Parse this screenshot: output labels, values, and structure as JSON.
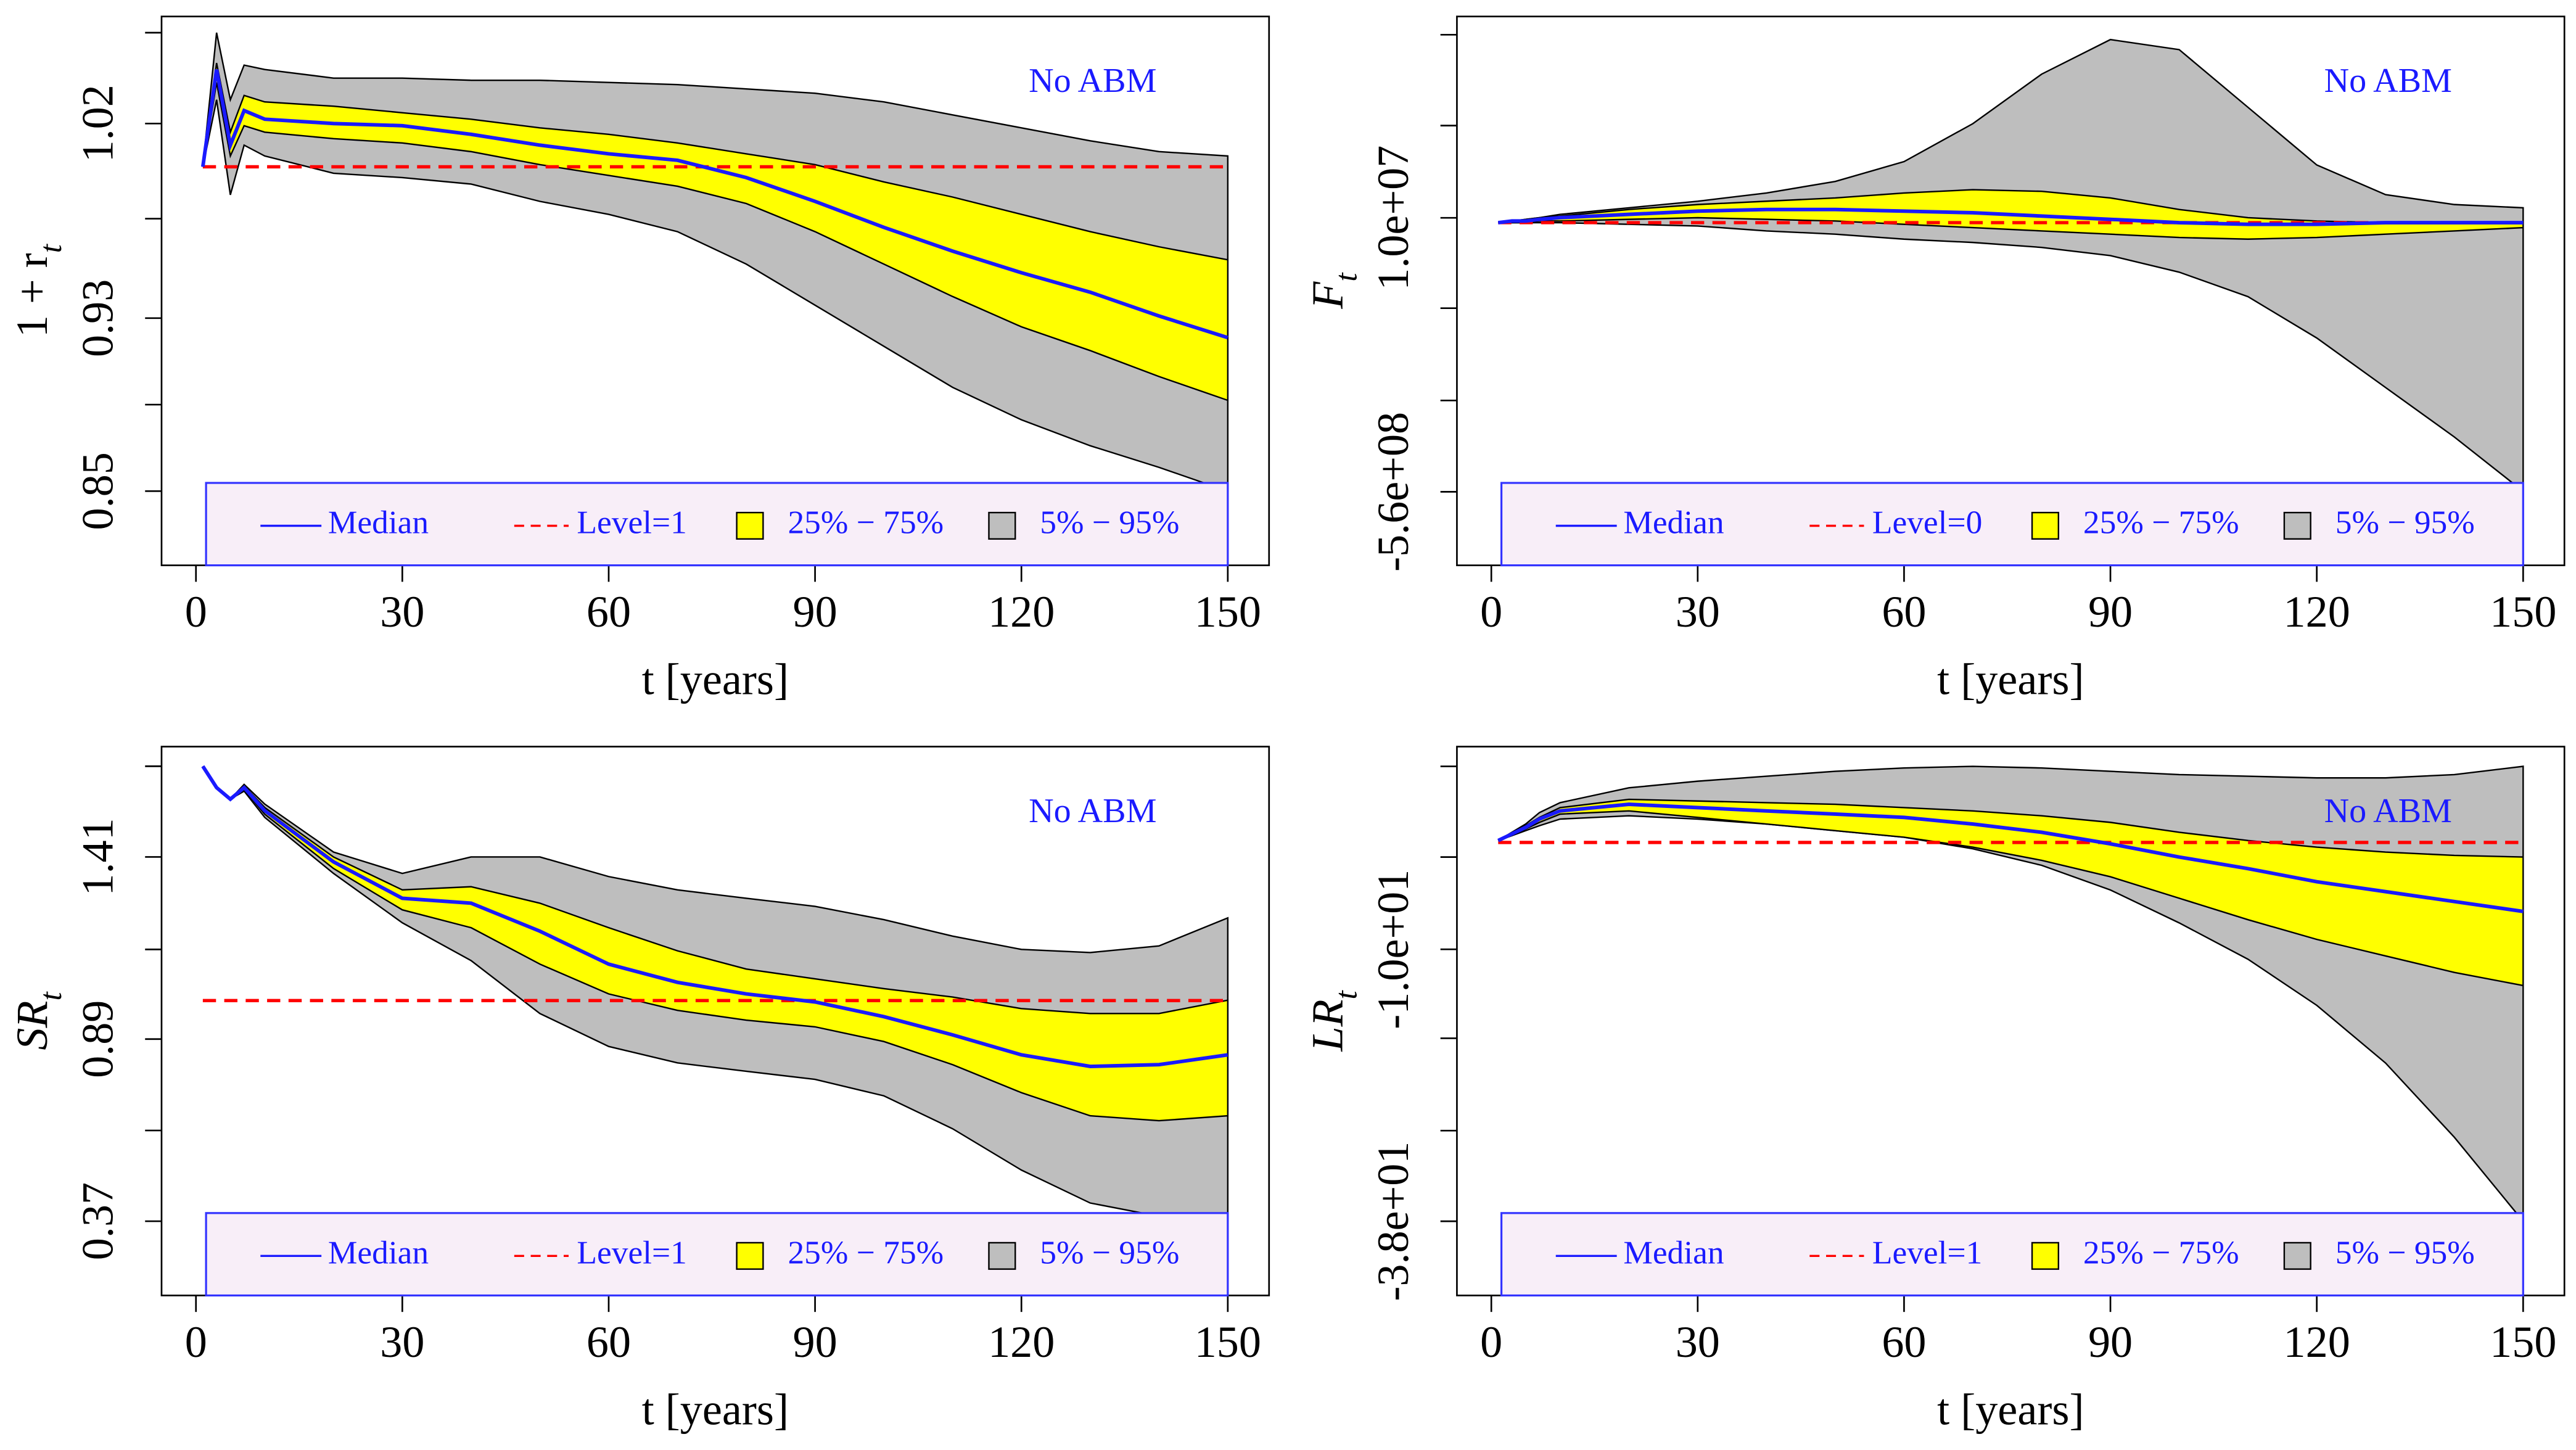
{
  "chart_data": [
    {
      "type": "line",
      "ylabel": {
        "text": "1 + r",
        "sub": "t"
      },
      "xlabel": "t [years]",
      "annotation": "No ABM",
      "x": [
        1,
        3,
        5,
        7,
        10,
        20,
        30,
        40,
        50,
        60,
        70,
        80,
        90,
        100,
        110,
        120,
        130,
        140,
        150
      ],
      "xlim": [
        -5,
        156
      ],
      "xticks": [
        0,
        30,
        60,
        90,
        120,
        150
      ],
      "ylim": [
        0.8157,
        1.0695
      ],
      "yticks": [
        1.02,
        0.93,
        0.85
      ],
      "yminorticks": [
        1.062,
        0.976,
        0.89
      ],
      "series": [
        {
          "name": "Median",
          "color": "#1a1aff",
          "values": [
            1.0,
            1.045,
            1.01,
            1.026,
            1.022,
            1.02,
            1.019,
            1.015,
            1.01,
            1.006,
            1.003,
            0.995,
            0.984,
            0.972,
            0.961,
            0.951,
            0.942,
            0.931,
            0.921
          ]
        },
        {
          "name": "Level=1",
          "color": "#ff0000",
          "dashed": true,
          "values": [
            1,
            1,
            1,
            1,
            1,
            1,
            1,
            1,
            1,
            1,
            1,
            1,
            1,
            1,
            1,
            1,
            1,
            1,
            1
          ]
        },
        {
          "name": "25% − 75%",
          "color": "#ffff00",
          "upper": [
            1.0,
            1.048,
            1.016,
            1.033,
            1.03,
            1.028,
            1.025,
            1.022,
            1.018,
            1.015,
            1.011,
            1.006,
            1.001,
            0.993,
            0.986,
            0.978,
            0.97,
            0.963,
            0.957
          ],
          "lower": [
            1.0,
            1.039,
            1.005,
            1.019,
            1.016,
            1.013,
            1.011,
            1.007,
            1.001,
            0.996,
            0.991,
            0.983,
            0.97,
            0.955,
            0.94,
            0.926,
            0.915,
            0.903,
            0.892
          ]
        },
        {
          "name": "5% − 95%",
          "color": "#bebebe",
          "upper": [
            1.0,
            1.062,
            1.031,
            1.047,
            1.045,
            1.041,
            1.041,
            1.04,
            1.04,
            1.039,
            1.038,
            1.036,
            1.034,
            1.03,
            1.024,
            1.018,
            1.012,
            1.007,
            1.005
          ],
          "lower": [
            1.0,
            1.031,
            0.987,
            1.01,
            1.005,
            0.997,
            0.995,
            0.992,
            0.984,
            0.978,
            0.97,
            0.955,
            0.936,
            0.917,
            0.898,
            0.883,
            0.871,
            0.861,
            0.85
          ]
        }
      ]
    },
    {
      "type": "line",
      "ylabel": {
        "text": "F",
        "sub": "t"
      },
      "xlabel": "t [years]",
      "annotation": "No ABM",
      "x": [
        1,
        3,
        5,
        7,
        10,
        20,
        30,
        40,
        50,
        60,
        70,
        80,
        90,
        100,
        110,
        120,
        130,
        140,
        150
      ],
      "xlim": [
        -5,
        156
      ],
      "xticks": [
        0,
        30,
        60,
        90,
        120,
        150
      ],
      "ylim": [
        -713000000.0,
        429000000.0
      ],
      "yticks": [
        {
          "value": 10000000.0,
          "label": "1.0e+07"
        },
        {
          "value": -560000000.0,
          "label": "-5.6e+08"
        }
      ],
      "yminorticks": [
        391000000.0,
        202000000.0,
        -178000000.0,
        -370000000.0
      ],
      "series": [
        {
          "name": "Median",
          "color": "#1a1aff",
          "values": [
            0,
            3400000.0,
            3400000.0,
            6900000.0,
            10300000.0,
            17200000.0,
            24000000.0,
            27400000.0,
            27400000.0,
            24000000.0,
            20600000.0,
            13700000.0,
            6900000.0,
            0,
            -3400000.0,
            -3400000.0,
            0,
            0,
            0
          ]
        },
        {
          "name": "Level=0",
          "color": "#ff0000",
          "dashed": true,
          "values": [
            0,
            0,
            0,
            0,
            0,
            0,
            0,
            0,
            0,
            0,
            0,
            0,
            0,
            0,
            0,
            0,
            0,
            0,
            0
          ]
        },
        {
          "name": "25% − 75%",
          "color": "#ffff00",
          "upper": [
            0,
            3400000.0,
            6900000.0,
            10300000.0,
            13700000.0,
            27400000.0,
            37700000.0,
            44600000.0,
            51500000.0,
            61700000.0,
            68600000.0,
            65200000.0,
            51500000.0,
            27400000.0,
            10300000.0,
            3400000.0,
            0,
            0,
            0
          ],
          "lower": [
            0,
            0,
            0,
            3400000.0,
            3400000.0,
            6900000.0,
            10300000.0,
            6900000.0,
            3400000.0,
            -3400000.0,
            -10300000.0,
            -17200000.0,
            -24000000.0,
            -30900000.0,
            -34300000.0,
            -30900000.0,
            -24000000.0,
            -17200000.0,
            -10300000.0
          ]
        },
        {
          "name": "5% − 95%",
          "color": "#bebebe",
          "upper": [
            0,
            3400000.0,
            6900000.0,
            10300000.0,
            17200000.0,
            30900000.0,
            44600000.0,
            61700000.0,
            85800000.0,
            127000000.0,
            206000000.0,
            309000000.0,
            381000000.0,
            360000000.0,
            240000000.0,
            120000000.0,
            58300000.0,
            37700000.0,
            30900000.0
          ],
          "lower": [
            0,
            0,
            0,
            0,
            0,
            -3400000.0,
            -6900000.0,
            -17200000.0,
            -24000000.0,
            -34300000.0,
            -41200000.0,
            -51500000.0,
            -68600000.0,
            -103000000.0,
            -154000000.0,
            -240000000.0,
            -343000000.0,
            -446000000.0,
            -559000000.0
          ]
        }
      ]
    },
    {
      "type": "line",
      "ylabel": {
        "text": "SR",
        "sub": "t"
      },
      "xlabel": "t [years]",
      "annotation": "No ABM",
      "x": [
        1,
        3,
        5,
        7,
        10,
        20,
        30,
        40,
        50,
        60,
        70,
        80,
        90,
        100,
        110,
        120,
        130,
        140,
        150
      ],
      "xlim": [
        -5,
        156
      ],
      "xticks": [
        0,
        30,
        60,
        90,
        120,
        150
      ],
      "ylim": [
        0.158,
        1.725
      ],
      "yticks": [
        1.41,
        0.89,
        0.37
      ],
      "yminorticks": [
        1.669,
        1.146,
        0.629
      ],
      "series": [
        {
          "name": "Median",
          "color": "#1a1aff",
          "values": [
            1.669,
            1.608,
            1.575,
            1.608,
            1.542,
            1.396,
            1.292,
            1.278,
            1.198,
            1.104,
            1.052,
            1.019,
            0.996,
            0.954,
            0.902,
            0.845,
            0.812,
            0.817,
            0.845
          ]
        },
        {
          "name": "Level=1",
          "color": "#ff0000",
          "dashed": true,
          "values": [
            1,
            1,
            1,
            1,
            1,
            1,
            1,
            1,
            1,
            1,
            1,
            1,
            1,
            1,
            1,
            1,
            1,
            1,
            1
          ]
        },
        {
          "name": "25% − 75%",
          "color": "#ffff00",
          "upper": [
            1.669,
            1.608,
            1.575,
            1.612,
            1.551,
            1.41,
            1.316,
            1.325,
            1.278,
            1.208,
            1.142,
            1.09,
            1.062,
            1.034,
            1.01,
            0.977,
            0.963,
            0.963,
            1.001
          ],
          "lower": [
            1.669,
            1.608,
            1.575,
            1.603,
            1.532,
            1.377,
            1.259,
            1.208,
            1.104,
            1.019,
            0.972,
            0.944,
            0.925,
            0.883,
            0.817,
            0.737,
            0.671,
            0.657,
            0.671
          ]
        },
        {
          "name": "5% − 95%",
          "color": "#bebebe",
          "upper": [
            1.669,
            1.608,
            1.575,
            1.617,
            1.561,
            1.424,
            1.363,
            1.41,
            1.41,
            1.354,
            1.316,
            1.292,
            1.269,
            1.231,
            1.184,
            1.146,
            1.137,
            1.156,
            1.236
          ],
          "lower": [
            1.669,
            1.608,
            1.575,
            1.598,
            1.523,
            1.363,
            1.222,
            1.114,
            0.963,
            0.869,
            0.822,
            0.798,
            0.775,
            0.728,
            0.634,
            0.516,
            0.422,
            0.384,
            0.37
          ]
        }
      ]
    },
    {
      "type": "line",
      "ylabel": {
        "text": "LR",
        "sub": "t"
      },
      "xlabel": "t [years]",
      "annotation": "No ABM",
      "x": [
        1,
        3,
        5,
        7,
        10,
        20,
        30,
        40,
        50,
        60,
        70,
        80,
        90,
        100,
        110,
        120,
        130,
        140,
        150
      ],
      "xlim": [
        -5,
        156
      ],
      "xticks": [
        0,
        30,
        60,
        90,
        120,
        150
      ],
      "ylim": [
        -45.64,
        10.87
      ],
      "yticks": [
        {
          "value": -10,
          "label": "-1.0e+01"
        },
        {
          "value": -38,
          "label": "-3.8e+01"
        }
      ],
      "yminorticks": [
        8.84,
        -0.5,
        -19.16,
        -28.67
      ],
      "series": [
        {
          "name": "Median",
          "color": "#1a1aff",
          "values": [
            1.2,
            1.88,
            2.56,
            3.41,
            4.25,
            4.93,
            4.59,
            4.25,
            3.92,
            3.58,
            2.9,
            2.05,
            0.86,
            -0.5,
            -1.69,
            -3.04,
            -4.06,
            -5.08,
            -6.1
          ]
        },
        {
          "name": "Level=1",
          "color": "#ff0000",
          "dashed": true,
          "values": [
            1,
            1,
            1,
            1,
            1,
            1,
            1,
            1,
            1,
            1,
            1,
            1,
            1,
            1,
            1,
            1,
            1,
            1,
            1
          ]
        },
        {
          "name": "25% − 75%",
          "color": "#ffff00",
          "upper": [
            1.2,
            1.88,
            2.73,
            3.58,
            4.59,
            5.44,
            5.27,
            5.1,
            4.93,
            4.59,
            4.25,
            3.75,
            3.07,
            2.05,
            1.2,
            0.52,
            0.01,
            -0.33,
            -0.5
          ],
          "lower": [
            1.2,
            1.71,
            2.39,
            3.07,
            3.92,
            4.25,
            3.58,
            2.9,
            2.22,
            1.54,
            0.52,
            -0.84,
            -2.53,
            -4.74,
            -6.95,
            -8.98,
            -10.68,
            -12.38,
            -13.73
          ]
        },
        {
          "name": "5% − 95%",
          "color": "#bebebe",
          "upper": [
            1.2,
            2.05,
            2.9,
            4.08,
            5.1,
            6.63,
            7.31,
            7.82,
            8.33,
            8.67,
            8.84,
            8.67,
            8.33,
            7.99,
            7.82,
            7.65,
            7.65,
            7.99,
            8.84
          ],
          "lower": [
            1.2,
            1.71,
            2.22,
            2.73,
            3.41,
            3.75,
            3.41,
            2.9,
            2.22,
            1.54,
            0.35,
            -1.35,
            -3.89,
            -7.28,
            -11.02,
            -15.77,
            -21.71,
            -29.35,
            -38.0
          ]
        }
      ]
    }
  ]
}
